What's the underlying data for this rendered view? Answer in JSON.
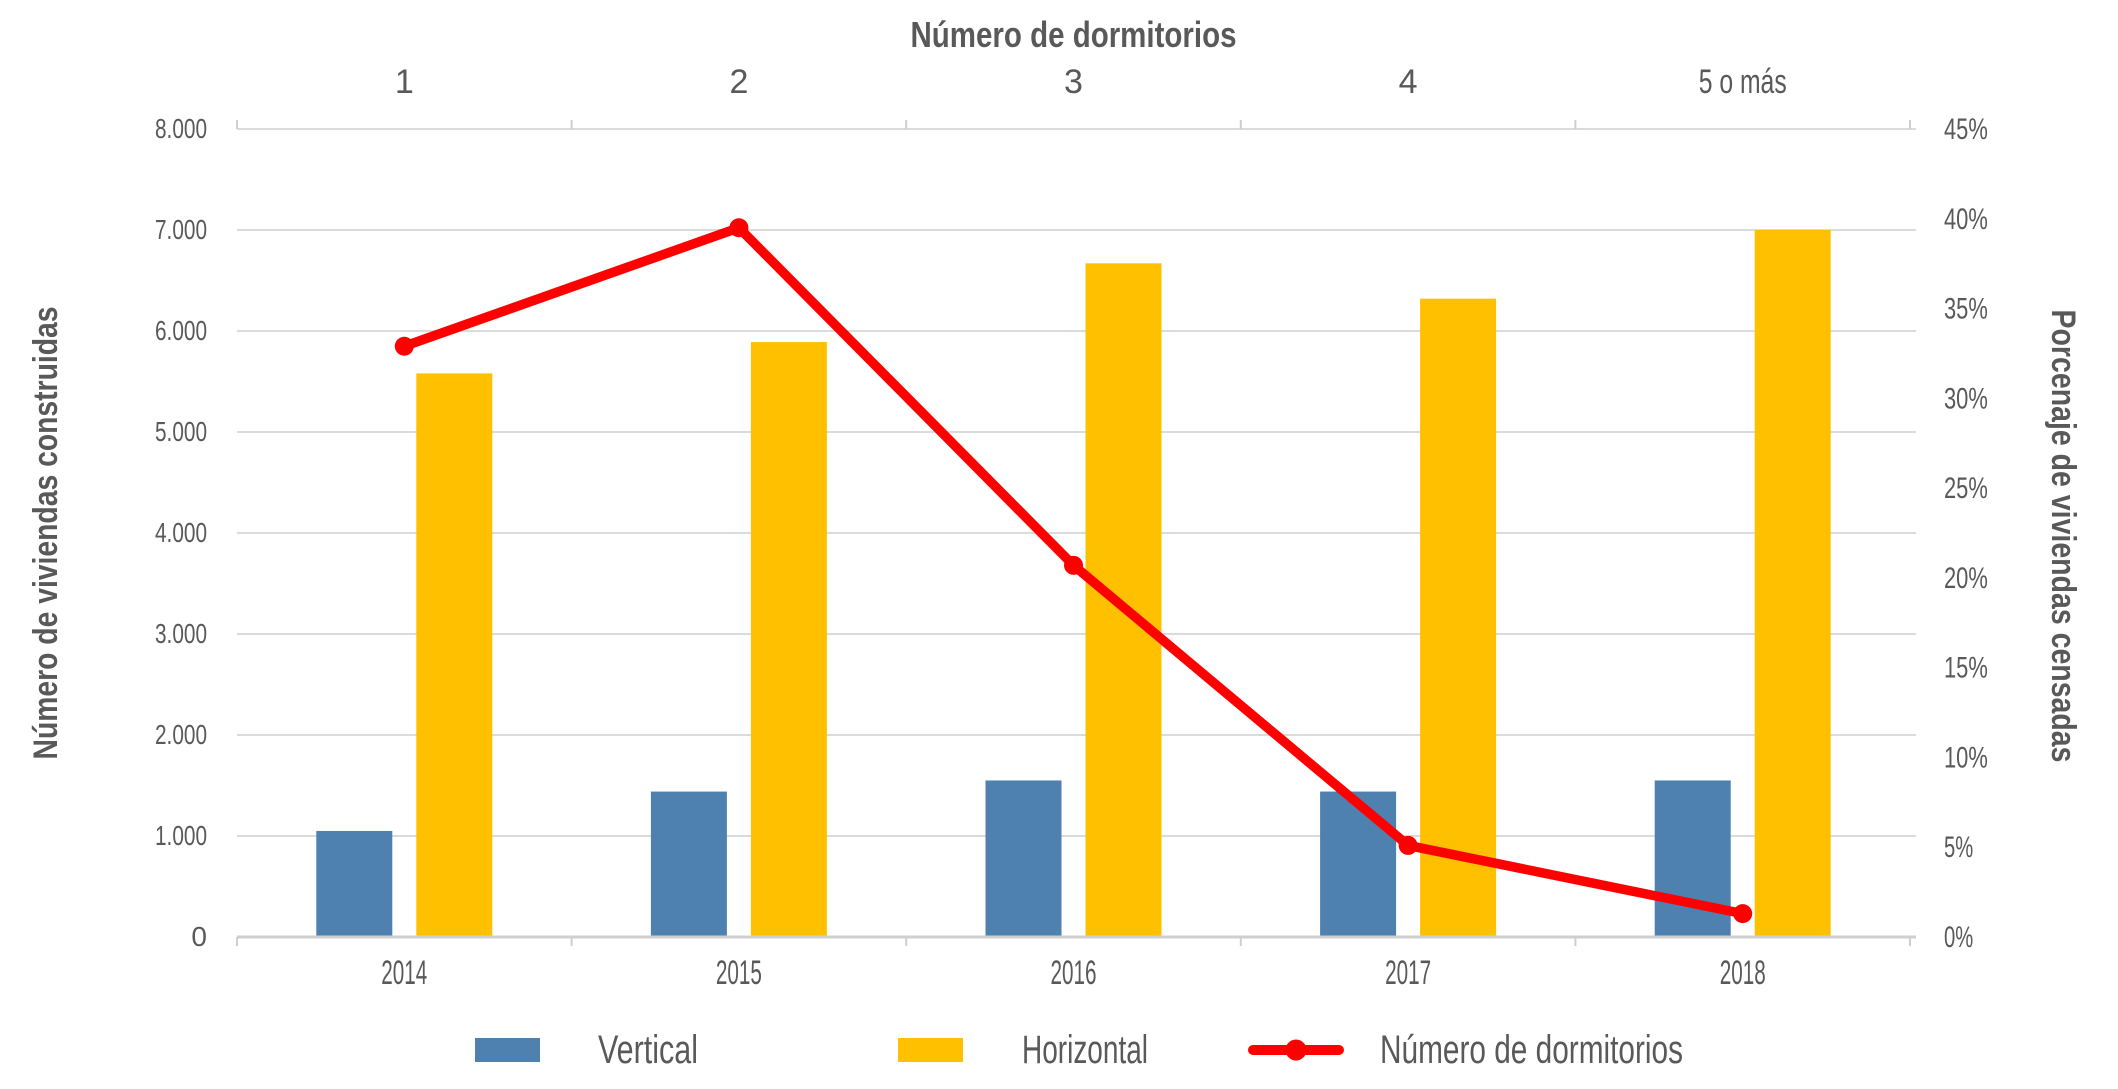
{
  "page": {
    "background": "#FFFFFF",
    "text_color": "#595959"
  },
  "chart_data": {
    "type": "combo-bar-line",
    "title": "Número de dormitorios",
    "categories": [
      "2014",
      "2015",
      "2016",
      "2017",
      "2018"
    ],
    "top_axis": {
      "title": "Número de dormitorios",
      "labels": [
        "1",
        "2",
        "3",
        "4",
        "5 o más"
      ]
    },
    "left_axis": {
      "title": "Número de viviendas construidas",
      "min": 0,
      "max": 8000,
      "tick_interval": 1000,
      "tick_labels": [
        "0",
        "1.000",
        "2.000",
        "3.000",
        "4.000",
        "5.000",
        "6.000",
        "7.000",
        "8.000"
      ]
    },
    "right_axis": {
      "title": "Porcenaje de viviendas censadas",
      "min": 0,
      "max": 45,
      "tick_interval": 5,
      "tick_labels": [
        "0%",
        "5%",
        "10%",
        "15%",
        "20%",
        "25%",
        "30%",
        "35%",
        "40%",
        "45%"
      ]
    },
    "series": [
      {
        "name": "Vertical",
        "type": "bar",
        "axis": "left",
        "color": "#4E81B0",
        "values": [
          1050,
          1440,
          1550,
          1440,
          1550
        ]
      },
      {
        "name": "Horizontal",
        "type": "bar",
        "axis": "left",
        "color": "#FFC000",
        "values": [
          5580,
          5890,
          6670,
          6320,
          7000
        ]
      },
      {
        "name": "Número de dormitorios",
        "type": "line",
        "axis": "right",
        "color": "#FF0000",
        "values": [
          32.9,
          39.5,
          20.7,
          5.1,
          1.3
        ]
      }
    ],
    "legend": {
      "position": "bottom",
      "items": [
        "Vertical",
        "Horizontal",
        "Número de dormitorios"
      ]
    },
    "grid": {
      "horizontal": true,
      "color": "#DBDBDB",
      "axis_line_color": "#CFCFCF"
    }
  }
}
